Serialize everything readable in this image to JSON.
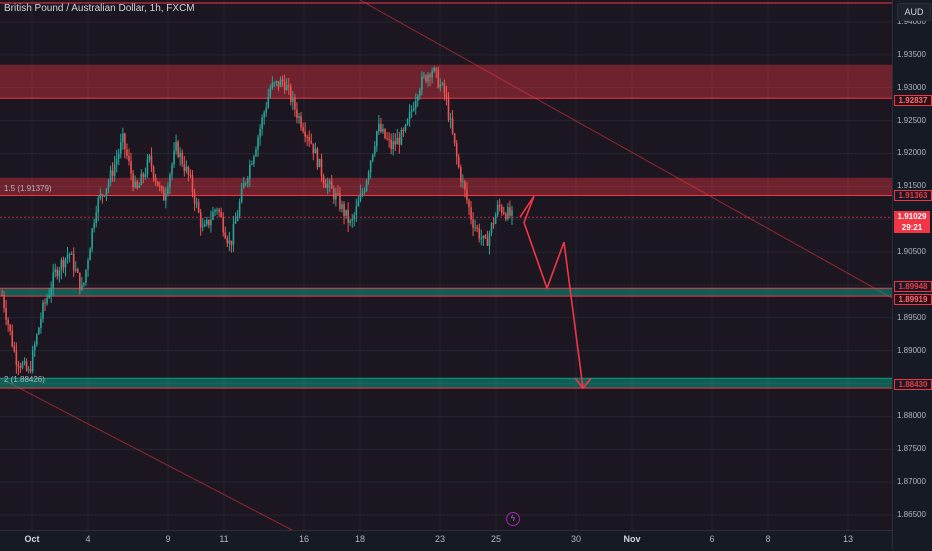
{
  "header": {
    "title": "British Pound / Australian Dollar, 1h, FXCM",
    "currency_button": "AUD"
  },
  "price_axis": {
    "labels": [
      "1.94000",
      "1.93500",
      "1.93000",
      "1.92500",
      "1.92000",
      "1.91500",
      "1.91000",
      "1.90500",
      "1.90000",
      "1.89500",
      "1.89000",
      "1.88500",
      "1.88000",
      "1.87500",
      "1.87000",
      "1.86500"
    ],
    "tags": {
      "level_upper_zone": "1.92837",
      "level_fib_1_5": "1.91363",
      "last_price": "1.91029",
      "countdown": "29:21",
      "level_support_top": "1.89948",
      "level_support_bottom": "1.89919",
      "level_fib_2": "1.88430"
    }
  },
  "time_axis": {
    "labels": [
      "Oct",
      "4",
      "9",
      "11",
      "16",
      "18",
      "23",
      "25",
      "30",
      "Nov",
      "6",
      "8",
      "13"
    ]
  },
  "fib_labels": {
    "fib_1_5": "1.5 (1.91379)",
    "fib_2": "2 (1.88426)"
  },
  "flash_icon": "lightning-icon",
  "colors": {
    "background": "#161a25",
    "bull": "#26a69a",
    "bear": "#ef5350",
    "resistance_zone": "#f23645",
    "support_zone": "#089981",
    "projection": "#f23645"
  },
  "chart_data": {
    "type": "candlestick",
    "symbol": "British Pound / Australian Dollar",
    "timeframe": "1h",
    "source": "FXCM",
    "ylim": [
      1.863,
      1.942
    ],
    "x_ticks": [
      "Oct",
      "4",
      "9",
      "11",
      "16",
      "18",
      "23",
      "25",
      "30",
      "Nov",
      "6",
      "8",
      "13"
    ],
    "price_path": [
      1.8985,
      1.889,
      1.8865,
      1.896,
      1.902,
      1.905,
      1.899,
      1.912,
      1.916,
      1.922,
      1.914,
      1.919,
      1.913,
      1.921,
      1.916,
      1.908,
      1.912,
      1.906,
      1.915,
      1.922,
      1.93,
      1.931,
      1.926,
      1.922,
      1.916,
      1.913,
      1.909,
      1.915,
      1.924,
      1.921,
      1.923,
      1.93,
      1.933,
      1.929,
      1.918,
      1.91,
      1.906,
      1.912,
      1.9103
    ],
    "zones": [
      {
        "name": "resistance-upper",
        "from": 1.9284,
        "to": 1.9335
      },
      {
        "name": "resistance-fib-1.5",
        "from": 1.9136,
        "to": 1.9163
      },
      {
        "name": "support-middle",
        "from": 1.8983,
        "to": 1.8995
      },
      {
        "name": "support-fib-2",
        "from": 1.8843,
        "to": 1.8858
      }
    ],
    "projection": [
      1.9103,
      1.9135,
      1.9095,
      1.8995,
      1.9065,
      1.8843
    ],
    "last_price": 1.91029
  }
}
